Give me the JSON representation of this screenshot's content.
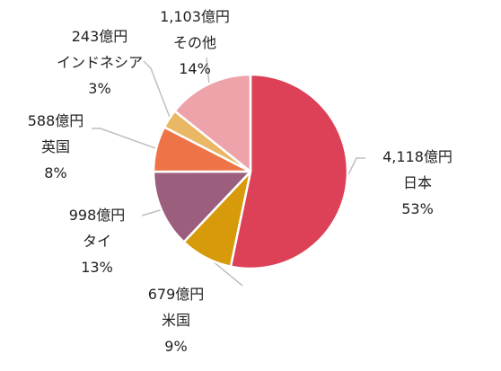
{
  "chart_data": {
    "type": "pie",
    "title": "",
    "legend": "none",
    "slices": [
      {
        "name": "日本",
        "amount": "4,118億円",
        "percent": "53%",
        "value": 4118,
        "color": "#dc4157"
      },
      {
        "name": "米国",
        "amount": "679億円",
        "percent": "9%",
        "value": 679,
        "color": "#d69a0a"
      },
      {
        "name": "タイ",
        "amount": "998億円",
        "percent": "13%",
        "value": 998,
        "color": "#9b5f7d"
      },
      {
        "name": "英国",
        "amount": "588億円",
        "percent": "8%",
        "value": 588,
        "color": "#ee7448"
      },
      {
        "name": "インドネシア",
        "amount": "243億円",
        "percent": "3%",
        "value": 243,
        "color": "#eab765"
      },
      {
        "name": "その他",
        "amount": "1,103億円",
        "percent": "14%",
        "value": 1103,
        "color": "#eea3ab"
      }
    ]
  }
}
